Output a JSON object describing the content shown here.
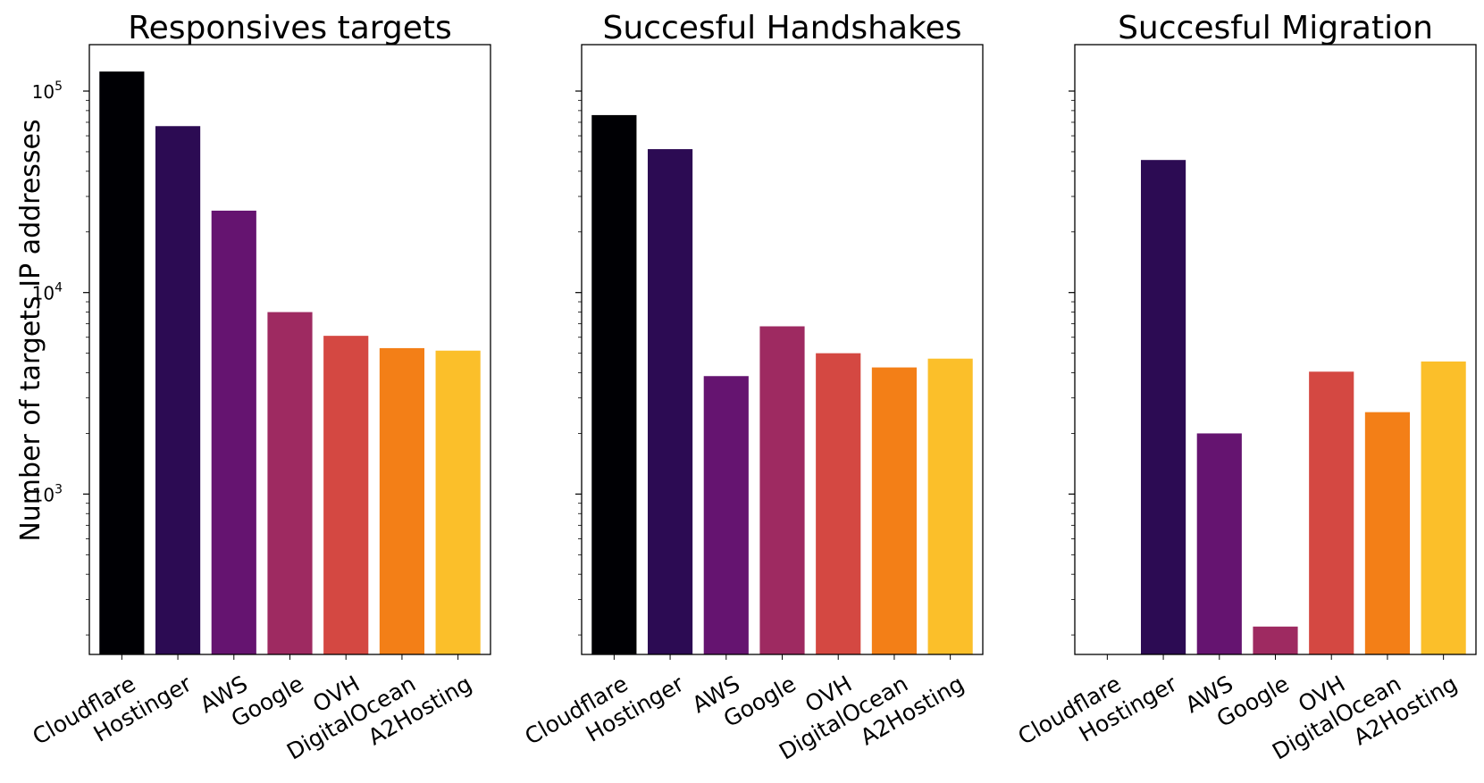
{
  "chart_data": [
    {
      "type": "bar",
      "title": "Responsives targets",
      "ylabel": "Number of targets IP addresses",
      "yscale": "log",
      "ylim": [
        160,
        170000
      ],
      "yticks": [
        "10^3",
        "10^4",
        "10^5"
      ],
      "show_ytick_labels": true,
      "categories": [
        "Cloudflare",
        "Hostinger",
        "AWS",
        "Google",
        "OVH",
        "DigitalOcean",
        "A2Hosting"
      ],
      "values": [
        125000,
        67000,
        25500,
        8000,
        6100,
        5300,
        5150
      ],
      "colors": [
        "#000004",
        "#2c0b53",
        "#651470",
        "#9e2a61",
        "#d44842",
        "#f37f17",
        "#fbbf2a"
      ]
    },
    {
      "type": "bar",
      "title": "Succesful Handshakes",
      "ylabel": "",
      "yscale": "log",
      "ylim": [
        160,
        170000
      ],
      "show_ytick_labels": false,
      "categories": [
        "Cloudflare",
        "Hostinger",
        "AWS",
        "Google",
        "OVH",
        "DigitalOcean",
        "A2Hosting"
      ],
      "values": [
        76000,
        51500,
        3850,
        6800,
        5000,
        4250,
        4700
      ],
      "colors": [
        "#000004",
        "#2c0b53",
        "#651470",
        "#9e2a61",
        "#d44842",
        "#f37f17",
        "#fbbf2a"
      ]
    },
    {
      "type": "bar",
      "title": "Succesful Migration",
      "ylabel": "",
      "yscale": "log",
      "ylim": [
        160,
        170000
      ],
      "show_ytick_labels": false,
      "categories": [
        "Cloudflare",
        "Hostinger",
        "AWS",
        "Google",
        "OVH",
        "DigitalOcean",
        "A2Hosting"
      ],
      "values": [
        0,
        45500,
        2000,
        220,
        4050,
        2550,
        4550
      ],
      "colors": [
        "#000004",
        "#2c0b53",
        "#651470",
        "#9e2a61",
        "#d44842",
        "#f37f17",
        "#fbbf2a"
      ]
    }
  ]
}
